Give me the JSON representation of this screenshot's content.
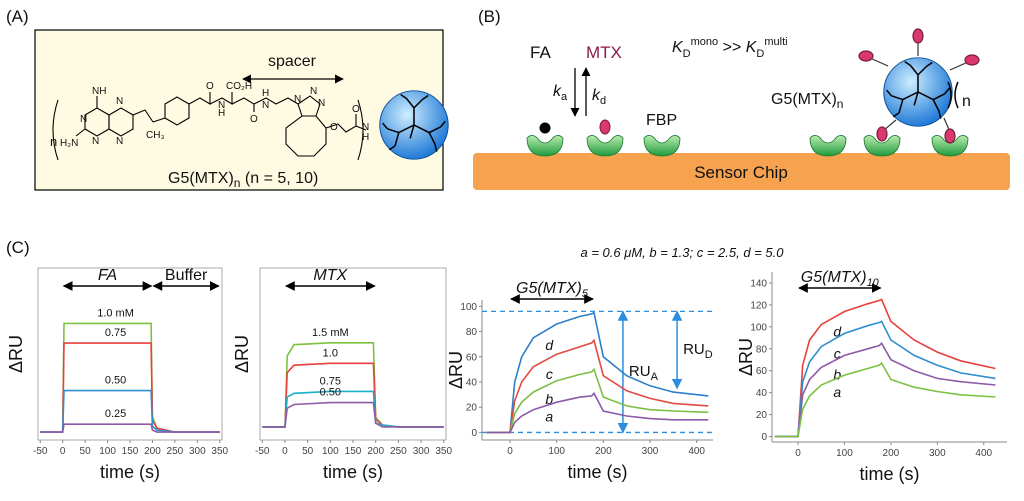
{
  "panel_a": {
    "label": "(A)",
    "spacer": "spacer",
    "name": "G5(MTX)",
    "name_sub": "n",
    "name_tail": " (n = 5, 10)",
    "n": "n",
    "atoms": [
      "NH",
      "H₂N",
      "N",
      "N",
      "N",
      "N",
      "CH₃",
      "O",
      "CO₂H",
      "H",
      "N",
      "O",
      "H",
      "N",
      "N",
      "N",
      "N",
      "O",
      "O",
      "H",
      "N"
    ]
  },
  "panel_b": {
    "label": "(B)",
    "fa": "FA",
    "mtx": "MTX",
    "k": "k",
    "ka_sub": "a",
    "kd_sub": "d",
    "fbp": "FBP",
    "kd_rel": [
      "K",
      "D",
      "mono",
      " >> ",
      "K",
      "D",
      "multi"
    ],
    "g5": "G5(MTX)",
    "g5_sub": "n",
    "n": "n",
    "chip": "Sensor Chip"
  },
  "panel_c": {
    "label": "(C)",
    "conc": "a = 0.6 μM, b = 1.3; c = 2.5, d = 5.0"
  },
  "chart_data": [
    {
      "type": "line",
      "xlabel": "time (s)",
      "ylabel": "ΔRU",
      "xlim": [
        -55,
        355
      ],
      "ylim": [
        -4,
        83
      ],
      "xticks": [
        -50,
        0,
        50,
        100,
        150,
        200,
        250,
        300,
        350
      ],
      "spans": [
        {
          "text": "FA",
          "italic": true,
          "from": 0,
          "to": 200
        },
        {
          "text": "Buffer",
          "italic": false,
          "from": 200,
          "to": 350
        }
      ],
      "x": [
        -50,
        0,
        3,
        100,
        197,
        200,
        210,
        250,
        350
      ],
      "series": [
        {
          "name": "1.0 mM",
          "color": "#7cc242",
          "values": [
            0,
            0,
            55,
            55,
            55,
            8,
            2,
            0,
            0
          ]
        },
        {
          "name": "0.75",
          "color": "#e8413c",
          "values": [
            0,
            0,
            45,
            45,
            45,
            6,
            2,
            0,
            0
          ]
        },
        {
          "name": "0.50",
          "color": "#2e8fd0",
          "values": [
            0,
            0,
            21,
            21,
            21,
            3,
            1,
            0,
            0
          ]
        },
        {
          "name": "0.25",
          "color": "#8e5ba8",
          "values": [
            0,
            0,
            4,
            4,
            4,
            1,
            0,
            0,
            0
          ]
        }
      ]
    },
    {
      "type": "line",
      "xlabel": "time (s)",
      "ylabel": "ΔRU",
      "xlim": [
        -55,
        355
      ],
      "ylim": [
        -7,
        85
      ],
      "xticks": [
        -50,
        0,
        50,
        100,
        150,
        200,
        250,
        300,
        350
      ],
      "spans": [
        {
          "text": "MTX",
          "italic": true,
          "from": 0,
          "to": 200
        }
      ],
      "x": [
        -50,
        0,
        5,
        20,
        100,
        195,
        200,
        215,
        250,
        350
      ],
      "series": [
        {
          "name": "1.5 mM",
          "color": "#7cc242",
          "values": [
            0,
            0,
            38,
            44,
            45,
            45,
            5,
            1,
            0,
            0
          ]
        },
        {
          "name": "1.0",
          "color": "#e8413c",
          "values": [
            0,
            0,
            29,
            33,
            34,
            34,
            4,
            1,
            0,
            0
          ]
        },
        {
          "name": "0.75",
          "color": "#1ab0c8",
          "values": [
            0,
            0,
            16,
            18,
            19,
            19,
            2,
            1,
            0,
            0
          ]
        },
        {
          "name": "0.50",
          "color": "#8e5ba8",
          "values": [
            0,
            0,
            10,
            12,
            13,
            13,
            2,
            0,
            0,
            0
          ]
        }
      ]
    },
    {
      "type": "line",
      "xlabel": "time (s)",
      "ylabel": "ΔRU",
      "xlim": [
        -60,
        435
      ],
      "ylim": [
        -6,
        105
      ],
      "xticks": [
        0,
        100,
        200,
        300,
        400
      ],
      "yticks": [
        0,
        20,
        40,
        60,
        80,
        100
      ],
      "spans": [
        {
          "text": "G5(MTX)",
          "sub": "5",
          "italic": true,
          "from": 0,
          "to": 180
        }
      ],
      "ref_lines": [
        0,
        96
      ],
      "arrows": [
        {
          "label": "RU",
          "sub": "A",
          "from": 96,
          "to": 0
        },
        {
          "label": "RU",
          "sub": "D",
          "from": 96,
          "to": 35
        }
      ],
      "x": [
        -50,
        0,
        10,
        25,
        50,
        100,
        150,
        175,
        180,
        200,
        250,
        300,
        350,
        425
      ],
      "series": [
        {
          "name": "d",
          "color": "#2c7fc9",
          "values": [
            0,
            0,
            40,
            60,
            75,
            86,
            92,
            94,
            95,
            60,
            45,
            37,
            32,
            29
          ]
        },
        {
          "name": "c",
          "color": "#e04b44",
          "values": [
            0,
            0,
            25,
            40,
            52,
            62,
            68,
            71,
            73,
            45,
            33,
            27,
            23,
            21
          ]
        },
        {
          "name": "b",
          "color": "#7bbf45",
          "values": [
            0,
            0,
            15,
            24,
            32,
            41,
            46,
            48,
            50,
            28,
            21,
            18,
            17,
            16
          ]
        },
        {
          "name": "a",
          "color": "#8b5aa8",
          "values": [
            0,
            0,
            8,
            13,
            18,
            24,
            28,
            29,
            31,
            17,
            13,
            11,
            10,
            10
          ]
        }
      ]
    },
    {
      "type": "line",
      "xlabel": "time (s)",
      "ylabel": "ΔRU",
      "xlim": [
        -56,
        450
      ],
      "ylim": [
        -5,
        150
      ],
      "xticks": [
        0,
        100,
        200,
        300,
        400
      ],
      "yticks": [
        0,
        20,
        40,
        60,
        80,
        100,
        120,
        140
      ],
      "spans": [
        {
          "text": "G5(MTX)",
          "sub": "10",
          "italic": true,
          "from": 0,
          "to": 180
        }
      ],
      "x": [
        -50,
        0,
        10,
        25,
        50,
        100,
        150,
        175,
        180,
        200,
        250,
        300,
        350,
        425
      ],
      "series": [
        {
          "name": "d",
          "color": "#e8413c",
          "values": [
            0,
            0,
            65,
            88,
            102,
            114,
            121,
            124,
            125,
            105,
            88,
            77,
            69,
            62
          ]
        },
        {
          "name": "c",
          "color": "#2e8fd0",
          "values": [
            0,
            0,
            50,
            68,
            82,
            94,
            101,
            104,
            105,
            88,
            74,
            65,
            58,
            53
          ]
        },
        {
          "name": "b",
          "color": "#8e5ba8",
          "values": [
            0,
            0,
            38,
            52,
            63,
            74,
            80,
            83,
            85,
            70,
            60,
            53,
            50,
            47
          ]
        },
        {
          "name": "a",
          "color": "#7cc242",
          "values": [
            0,
            0,
            25,
            37,
            47,
            56,
            62,
            65,
            67,
            52,
            45,
            41,
            38,
            36
          ]
        }
      ]
    }
  ]
}
